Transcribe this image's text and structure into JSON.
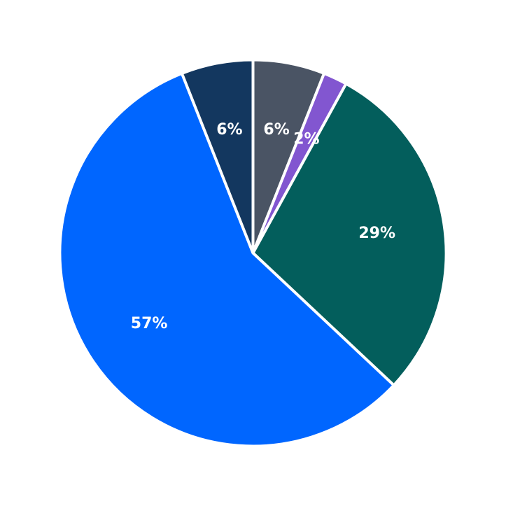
{
  "chart_data": {
    "type": "pie",
    "title": "",
    "start": "12 o'clock",
    "direction": "clockwise",
    "slices": [
      {
        "value": 6,
        "label": "6%",
        "color": "#4a5464"
      },
      {
        "value": 2,
        "label": "2%",
        "color": "#8256d0"
      },
      {
        "value": 29,
        "label": "29%",
        "color": "#035e5c"
      },
      {
        "value": 57,
        "label": "57%",
        "color": "#0066ff"
      },
      {
        "value": 6,
        "label": "6%",
        "color": "#13375f"
      }
    ]
  }
}
